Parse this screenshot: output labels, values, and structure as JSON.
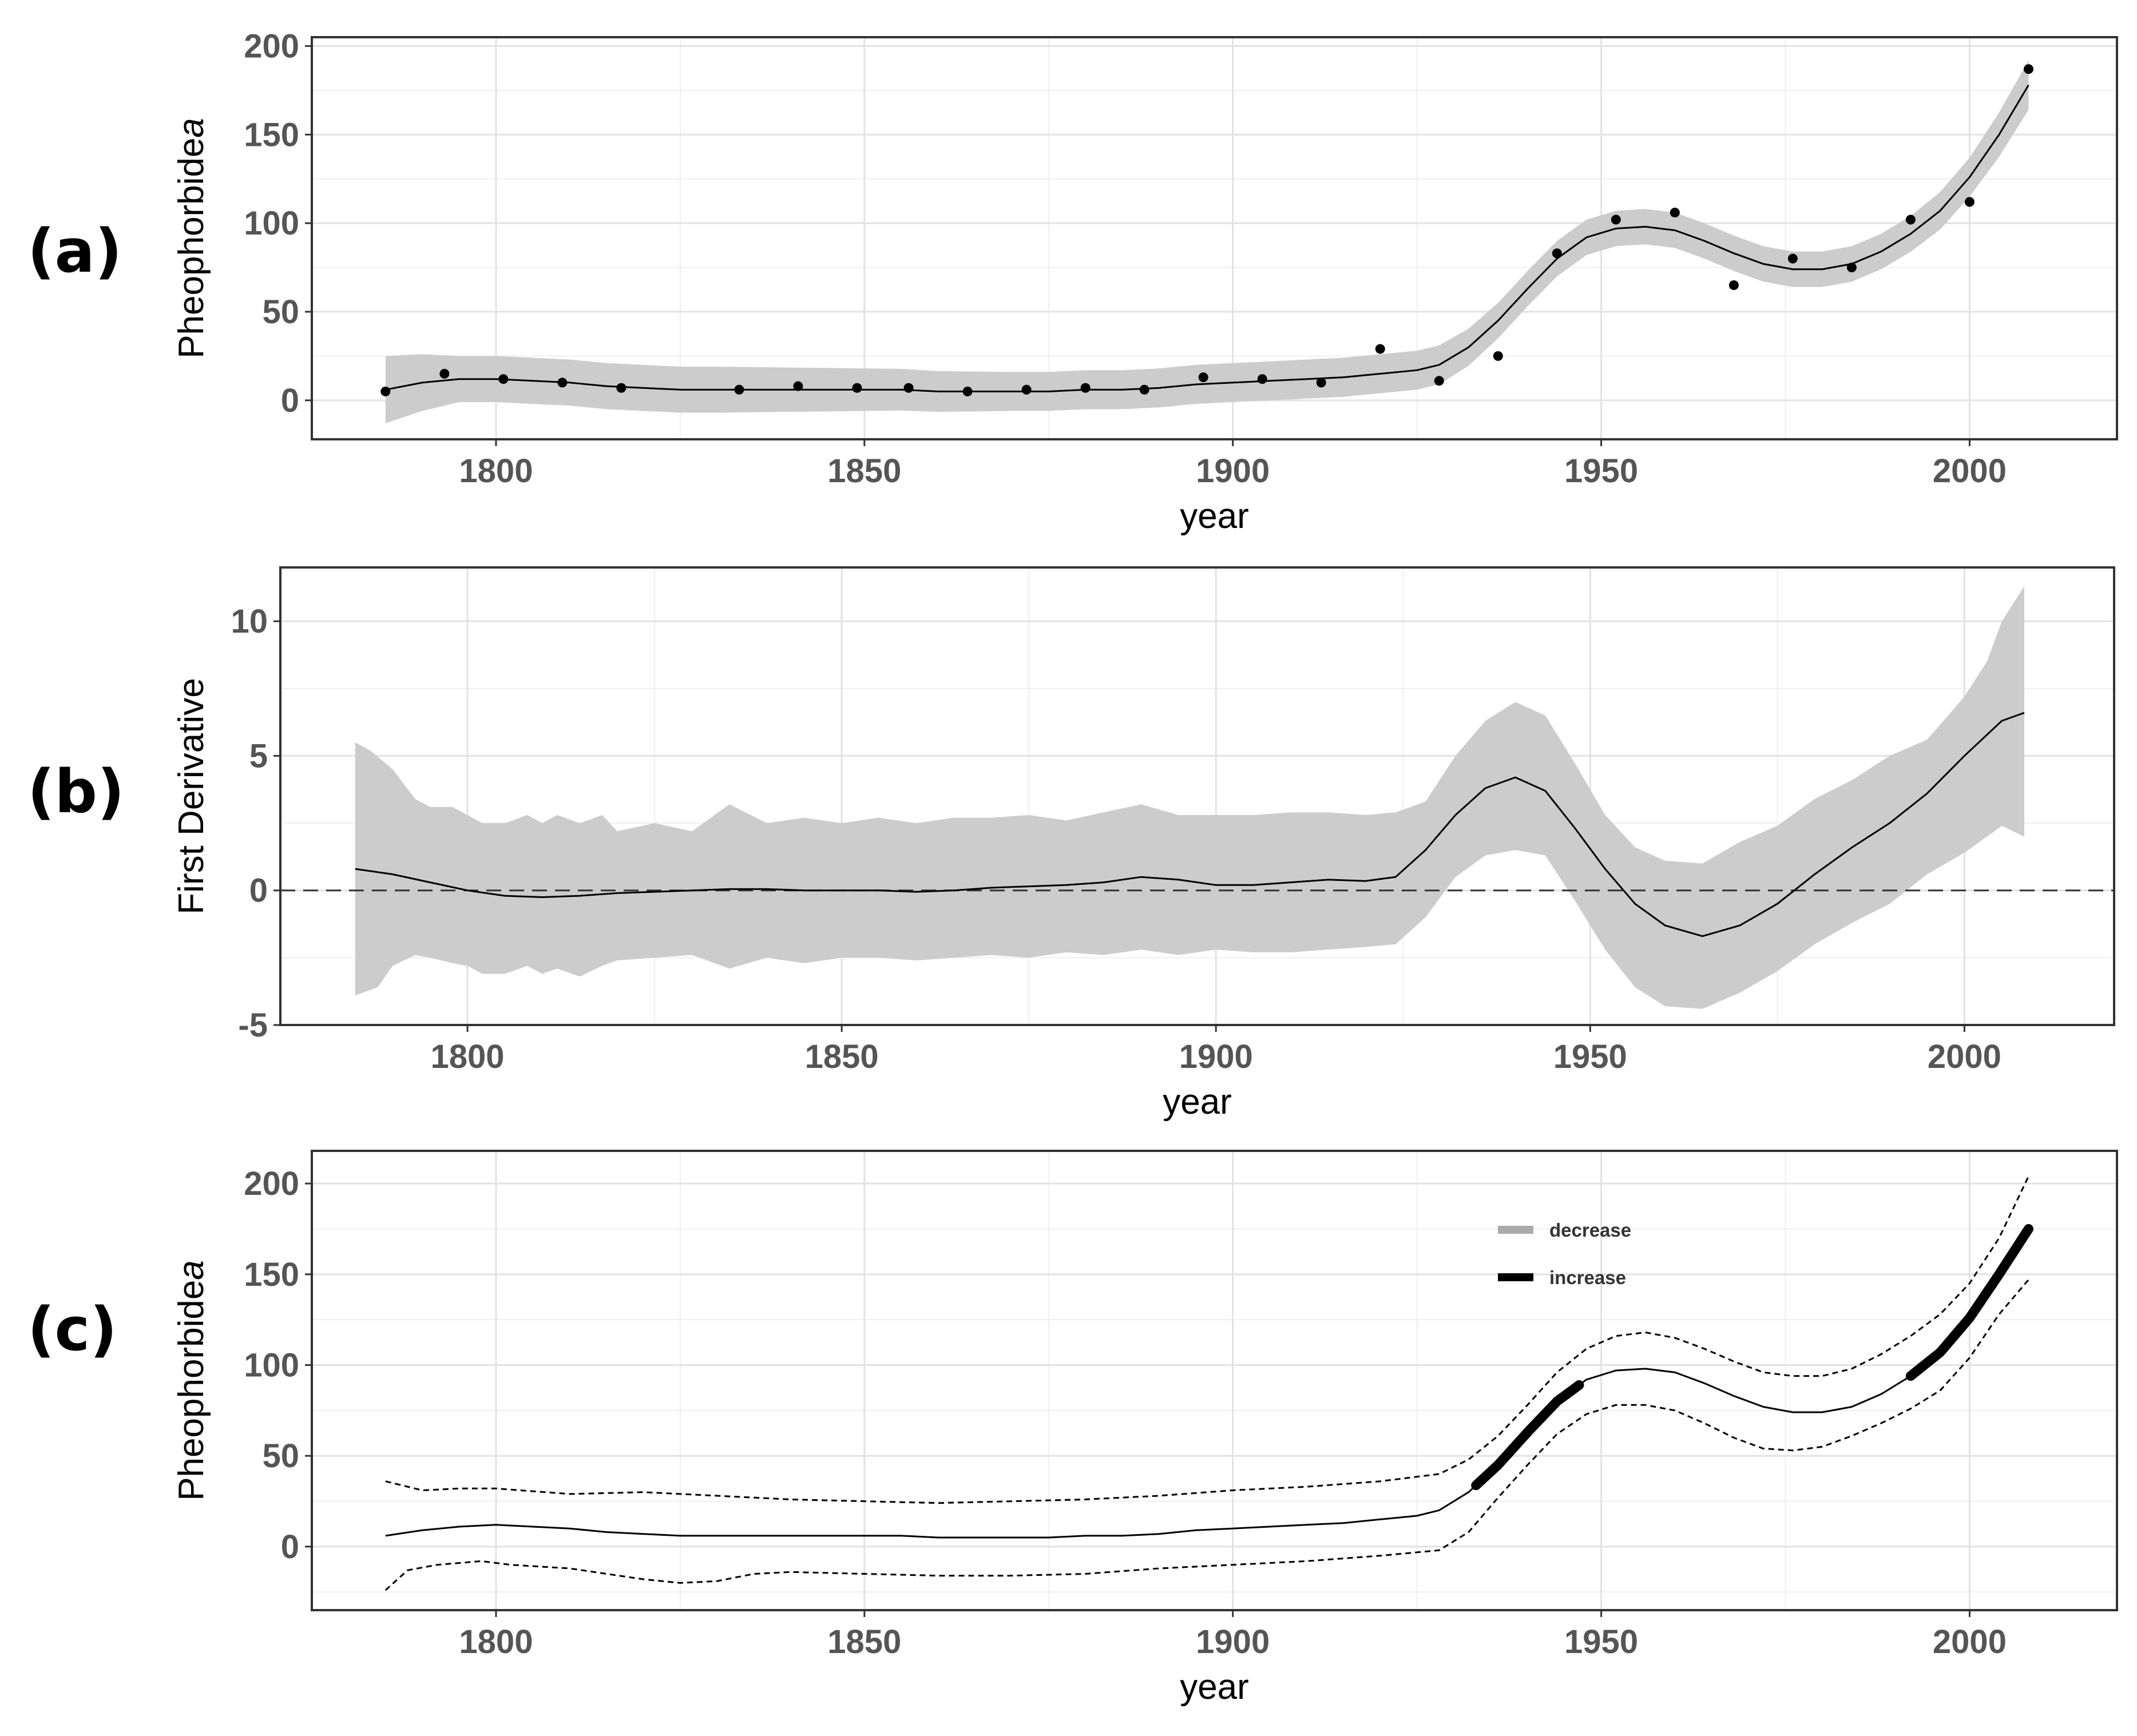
{
  "panel_labels": [
    "(a)",
    "(b)",
    "(c)"
  ],
  "chart_data": [
    {
      "type": "scatter",
      "panel": "(a)",
      "xlabel": "year",
      "ylabel": "Pheophorbide a",
      "ylabel_main": "Pheophorbide",
      "ylabel_italic": "a",
      "xlim": [
        1775,
        2020
      ],
      "ylim": [
        -22,
        205
      ],
      "x_ticks": [
        "1800",
        "1850",
        "1900",
        "1950",
        "2000"
      ],
      "y_ticks": [
        "0",
        "50",
        "100",
        "150",
        "200"
      ],
      "points": [
        {
          "x": 1785,
          "y": 5
        },
        {
          "x": 1793,
          "y": 15
        },
        {
          "x": 1801,
          "y": 12
        },
        {
          "x": 1809,
          "y": 10
        },
        {
          "x": 1817,
          "y": 7
        },
        {
          "x": 1833,
          "y": 6
        },
        {
          "x": 1841,
          "y": 8
        },
        {
          "x": 1849,
          "y": 7
        },
        {
          "x": 1856,
          "y": 7
        },
        {
          "x": 1864,
          "y": 5
        },
        {
          "x": 1872,
          "y": 6
        },
        {
          "x": 1880,
          "y": 7
        },
        {
          "x": 1888,
          "y": 6
        },
        {
          "x": 1896,
          "y": 13
        },
        {
          "x": 1904,
          "y": 12
        },
        {
          "x": 1912,
          "y": 10
        },
        {
          "x": 1920,
          "y": 29
        },
        {
          "x": 1928,
          "y": 11
        },
        {
          "x": 1936,
          "y": 25
        },
        {
          "x": 1944,
          "y": 83
        },
        {
          "x": 1952,
          "y": 102
        },
        {
          "x": 1960,
          "y": 106
        },
        {
          "x": 1968,
          "y": 65
        },
        {
          "x": 1976,
          "y": 80
        },
        {
          "x": 1984,
          "y": 75
        },
        {
          "x": 1992,
          "y": 102
        },
        {
          "x": 2000,
          "y": 112
        },
        {
          "x": 2008,
          "y": 187
        }
      ],
      "fit": {
        "x": [
          1785,
          1790,
          1795,
          1800,
          1805,
          1810,
          1815,
          1820,
          1825,
          1830,
          1835,
          1840,
          1845,
          1850,
          1855,
          1860,
          1865,
          1870,
          1875,
          1880,
          1885,
          1890,
          1895,
          1900,
          1905,
          1910,
          1915,
          1920,
          1925,
          1928,
          1932,
          1936,
          1940,
          1944,
          1948,
          1952,
          1956,
          1960,
          1964,
          1968,
          1972,
          1976,
          1980,
          1984,
          1988,
          1992,
          1996,
          2000,
          2004,
          2008
        ],
        "y": [
          6,
          10,
          12,
          12,
          11,
          10,
          8,
          7,
          6,
          6,
          6,
          6,
          6,
          6,
          6,
          5,
          5,
          5,
          5,
          6,
          6,
          7,
          9,
          10,
          11,
          12,
          13,
          15,
          17,
          20,
          30,
          45,
          63,
          80,
          92,
          97,
          98,
          96,
          90,
          83,
          77,
          74,
          74,
          77,
          84,
          94,
          107,
          126,
          150,
          178
        ]
      },
      "band_halfwidth": {
        "x": [
          1785,
          1795,
          1810,
          1830,
          1850,
          1870,
          1890,
          1905,
          1920,
          1928,
          1936,
          1944,
          1952,
          1960,
          1970,
          1980,
          1990,
          2000,
          2008
        ],
        "y": [
          19,
          13,
          13,
          13,
          12,
          11,
          11,
          11,
          11,
          11,
          10,
          10,
          10,
          10,
          10,
          10,
          10,
          11,
          14
        ]
      }
    },
    {
      "type": "line",
      "panel": "(b)",
      "xlabel": "year",
      "ylabel": "First Derivative",
      "xlim": [
        1775,
        2020
      ],
      "ylim": [
        -5,
        12
      ],
      "x_ticks": [
        "1800",
        "1850",
        "1900",
        "1950",
        "2000"
      ],
      "y_ticks": [
        "-5",
        "0",
        "5",
        "10"
      ],
      "reference_line": 0,
      "derivative": {
        "x": [
          1785,
          1790,
          1795,
          1800,
          1805,
          1810,
          1815,
          1820,
          1825,
          1830,
          1835,
          1840,
          1845,
          1850,
          1855,
          1860,
          1865,
          1870,
          1875,
          1880,
          1885,
          1890,
          1895,
          1900,
          1905,
          1910,
          1915,
          1920,
          1924,
          1928,
          1932,
          1936,
          1940,
          1944,
          1948,
          1952,
          1956,
          1960,
          1965,
          1970,
          1975,
          1980,
          1985,
          1990,
          1995,
          2000,
          2005,
          2008
        ],
        "y": [
          0.8,
          0.6,
          0.3,
          0.0,
          -0.2,
          -0.25,
          -0.2,
          -0.1,
          -0.05,
          0.0,
          0.05,
          0.05,
          0.0,
          0.0,
          0.0,
          -0.05,
          0.0,
          0.1,
          0.15,
          0.2,
          0.3,
          0.5,
          0.4,
          0.2,
          0.2,
          0.3,
          0.4,
          0.35,
          0.5,
          1.5,
          2.8,
          3.8,
          4.2,
          3.7,
          2.3,
          0.8,
          -0.5,
          -1.3,
          -1.7,
          -1.3,
          -0.5,
          0.6,
          1.6,
          2.5,
          3.6,
          5.0,
          6.3,
          6.6
        ]
      },
      "upper": {
        "x": [
          1785,
          1787,
          1790,
          1793,
          1795,
          1798,
          1800,
          1802,
          1805,
          1808,
          1810,
          1812,
          1815,
          1818,
          1820,
          1825,
          1830,
          1835,
          1840,
          1845,
          1850,
          1855,
          1860,
          1865,
          1870,
          1875,
          1880,
          1885,
          1890,
          1895,
          1900,
          1905,
          1910,
          1915,
          1920,
          1924,
          1928,
          1932,
          1936,
          1940,
          1944,
          1948,
          1952,
          1956,
          1960,
          1965,
          1970,
          1975,
          1980,
          1985,
          1990,
          1995,
          2000,
          2003,
          2005,
          2008
        ],
        "y": [
          5.5,
          5.2,
          4.5,
          3.4,
          3.1,
          3.1,
          2.8,
          2.5,
          2.5,
          2.8,
          2.5,
          2.8,
          2.5,
          2.8,
          2.2,
          2.5,
          2.2,
          3.2,
          2.5,
          2.7,
          2.5,
          2.7,
          2.5,
          2.7,
          2.7,
          2.8,
          2.6,
          2.9,
          3.2,
          2.8,
          2.8,
          2.8,
          2.9,
          2.9,
          2.8,
          2.9,
          3.3,
          5.0,
          6.3,
          7.0,
          6.5,
          4.7,
          2.8,
          1.6,
          1.1,
          1.0,
          1.8,
          2.4,
          3.4,
          4.1,
          5.0,
          5.6,
          7.2,
          8.5,
          10.0,
          11.3
        ]
      },
      "lower": {
        "x": [
          1785,
          1788,
          1790,
          1793,
          1795,
          1798,
          1800,
          1802,
          1805,
          1808,
          1810,
          1812,
          1815,
          1818,
          1820,
          1825,
          1830,
          1835,
          1840,
          1845,
          1850,
          1855,
          1860,
          1865,
          1870,
          1875,
          1880,
          1885,
          1890,
          1895,
          1900,
          1905,
          1910,
          1915,
          1920,
          1924,
          1928,
          1932,
          1936,
          1940,
          1944,
          1948,
          1952,
          1956,
          1960,
          1965,
          1970,
          1975,
          1980,
          1985,
          1990,
          1995,
          2000,
          2003,
          2005,
          2008
        ],
        "y": [
          -3.9,
          -3.6,
          -2.8,
          -2.4,
          -2.5,
          -2.7,
          -2.8,
          -3.1,
          -3.1,
          -2.8,
          -3.1,
          -2.9,
          -3.2,
          -2.8,
          -2.6,
          -2.5,
          -2.4,
          -2.9,
          -2.5,
          -2.7,
          -2.5,
          -2.5,
          -2.6,
          -2.5,
          -2.4,
          -2.5,
          -2.3,
          -2.4,
          -2.2,
          -2.4,
          -2.2,
          -2.3,
          -2.3,
          -2.2,
          -2.1,
          -2.0,
          -1.0,
          0.5,
          1.3,
          1.5,
          1.3,
          -0.4,
          -2.2,
          -3.6,
          -4.3,
          -4.4,
          -3.8,
          -3.0,
          -2.0,
          -1.2,
          -0.5,
          0.6,
          1.4,
          2.0,
          2.4,
          2.0
        ]
      }
    },
    {
      "type": "line",
      "panel": "(c)",
      "xlabel": "year",
      "ylabel": "Pheophorbide a",
      "ylabel_main": "Pheophorbide",
      "ylabel_italic": "a",
      "xlim": [
        1775,
        2020
      ],
      "ylim": [
        -35,
        218
      ],
      "x_ticks": [
        "1800",
        "1850",
        "1900",
        "1950",
        "2000"
      ],
      "y_ticks": [
        "0",
        "50",
        "100",
        "150",
        "200"
      ],
      "fit": {
        "x": [
          1785,
          1790,
          1795,
          1800,
          1805,
          1810,
          1815,
          1820,
          1825,
          1830,
          1835,
          1840,
          1845,
          1850,
          1855,
          1860,
          1865,
          1870,
          1875,
          1880,
          1885,
          1890,
          1895,
          1900,
          1905,
          1910,
          1915,
          1920,
          1925,
          1928,
          1932,
          1936,
          1940,
          1944,
          1948,
          1952,
          1956,
          1960,
          1964,
          1968,
          1972,
          1976,
          1980,
          1984,
          1988,
          1992,
          1996,
          2000,
          2004,
          2008
        ],
        "y": [
          6,
          9,
          11,
          12,
          11,
          10,
          8,
          7,
          6,
          6,
          6,
          6,
          6,
          6,
          6,
          5,
          5,
          5,
          5,
          6,
          6,
          7,
          9,
          10,
          11,
          12,
          13,
          15,
          17,
          20,
          30,
          45,
          63,
          80,
          92,
          97,
          98,
          96,
          90,
          83,
          77,
          74,
          74,
          77,
          84,
          94,
          107,
          126,
          150,
          175
        ]
      },
      "upper": {
        "x": [
          1785,
          1790,
          1795,
          1800,
          1810,
          1820,
          1830,
          1840,
          1850,
          1860,
          1870,
          1880,
          1890,
          1900,
          1910,
          1920,
          1928,
          1932,
          1936,
          1940,
          1944,
          1948,
          1952,
          1956,
          1960,
          1964,
          1968,
          1972,
          1976,
          1980,
          1984,
          1988,
          1992,
          1996,
          2000,
          2004,
          2008
        ],
        "y": [
          36,
          31,
          32,
          32,
          29,
          30,
          28,
          26,
          25,
          24,
          25,
          26,
          28,
          31,
          33,
          36,
          40,
          48,
          61,
          78,
          96,
          109,
          116,
          118,
          115,
          109,
          102,
          96,
          94,
          94,
          98,
          106,
          116,
          128,
          145,
          170,
          204
        ]
      },
      "lower": {
        "x": [
          1785,
          1788,
          1792,
          1798,
          1802,
          1810,
          1820,
          1825,
          1830,
          1835,
          1840,
          1850,
          1860,
          1870,
          1880,
          1890,
          1900,
          1910,
          1920,
          1928,
          1932,
          1936,
          1940,
          1944,
          1948,
          1952,
          1956,
          1960,
          1964,
          1968,
          1972,
          1976,
          1980,
          1984,
          1988,
          1992,
          1996,
          2000,
          2004,
          2008
        ],
        "y": [
          -24,
          -13,
          -10,
          -8,
          -10,
          -12,
          -18,
          -20,
          -19,
          -15,
          -14,
          -15,
          -16,
          -16,
          -15,
          -12,
          -10,
          -8,
          -5,
          -2,
          8,
          27,
          45,
          62,
          73,
          78,
          78,
          75,
          68,
          60,
          54,
          53,
          55,
          61,
          68,
          76,
          86,
          104,
          128,
          147
        ]
      },
      "segments": [
        {
          "trend": "increase",
          "x_start": 1933,
          "x_end": 1947
        },
        {
          "trend": "increase",
          "x_start": 1992,
          "x_end": 2008
        }
      ],
      "legend": {
        "position": "top-right",
        "entries": [
          {
            "label": "decrease",
            "color": "#aaaaaa"
          },
          {
            "label": "increase",
            "color": "#000000"
          }
        ]
      }
    }
  ],
  "colors": {
    "band": "#cccccc",
    "grid": "#ebebeb",
    "panel_border": "#333333",
    "tick_label": "#555555",
    "line": "#000000"
  }
}
